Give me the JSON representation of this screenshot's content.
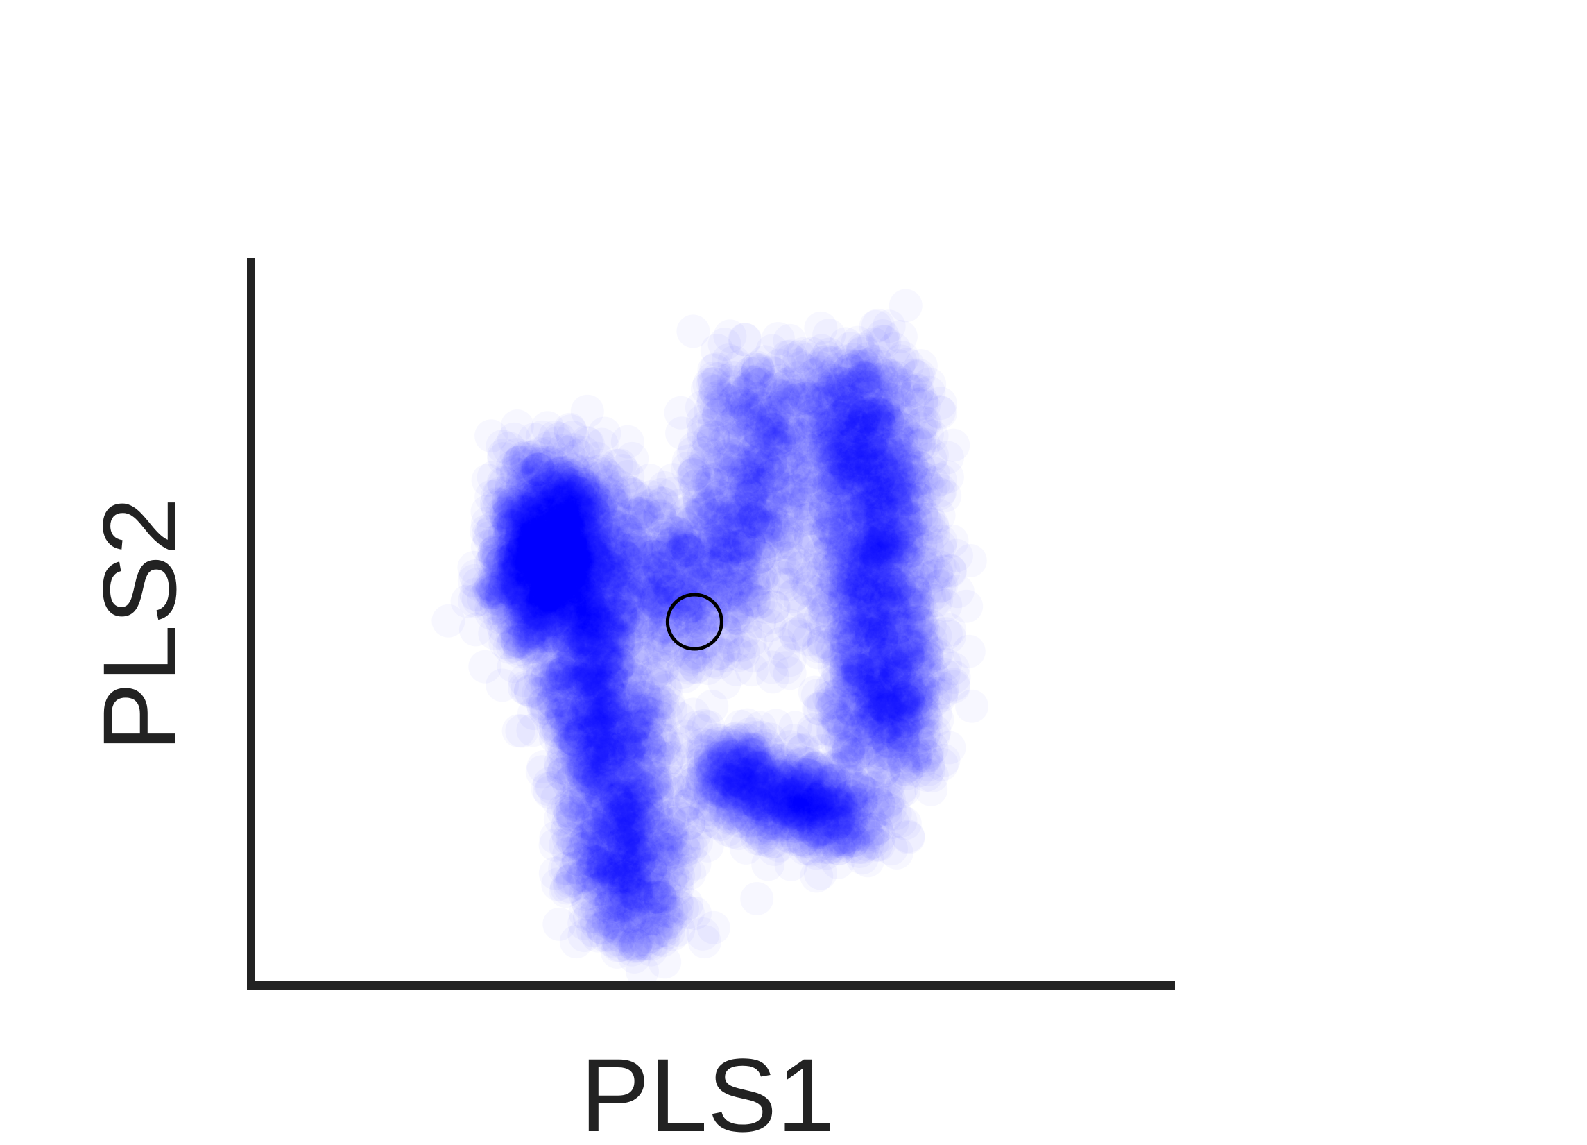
{
  "chart_data": {
    "type": "scatter",
    "title": "",
    "xlabel": "PLS1",
    "ylabel": "PLS2",
    "xlim": [
      0,
      10
    ],
    "ylim": [
      0,
      10
    ],
    "show_ticks": false,
    "grid": false,
    "point_color": "#0000ff",
    "point_alpha": 0.03,
    "series": [
      {
        "name": "",
        "clusters": [
          {
            "segment": [
              [
                3.3,
                7.2
              ],
              [
                4.2,
                0.8
              ]
            ],
            "spread": 0.32,
            "count": 2200
          },
          {
            "segment": [
              [
                3.2,
                6.5
              ],
              [
                3.1,
                5.0
              ]
            ],
            "spread": 0.3,
            "count": 900
          },
          {
            "segment": [
              [
                6.6,
                8.4
              ],
              [
                6.9,
                3.2
              ]
            ],
            "spread": 0.34,
            "count": 1900
          },
          {
            "segment": [
              [
                5.5,
                8.3
              ],
              [
                5.3,
                5.8
              ]
            ],
            "spread": 0.35,
            "count": 600
          },
          {
            "segment": [
              [
                5.1,
                3.0
              ],
              [
                6.5,
                2.2
              ]
            ],
            "spread": 0.3,
            "count": 800
          },
          {
            "segment": [
              [
                4.2,
                6.2
              ],
              [
                5.0,
                4.8
              ]
            ],
            "spread": 0.45,
            "count": 500
          }
        ]
      }
    ],
    "annotations": [
      {
        "type": "open-circle-marker",
        "x": 4.8,
        "y": 5.0,
        "color": "#000000"
      }
    ]
  }
}
